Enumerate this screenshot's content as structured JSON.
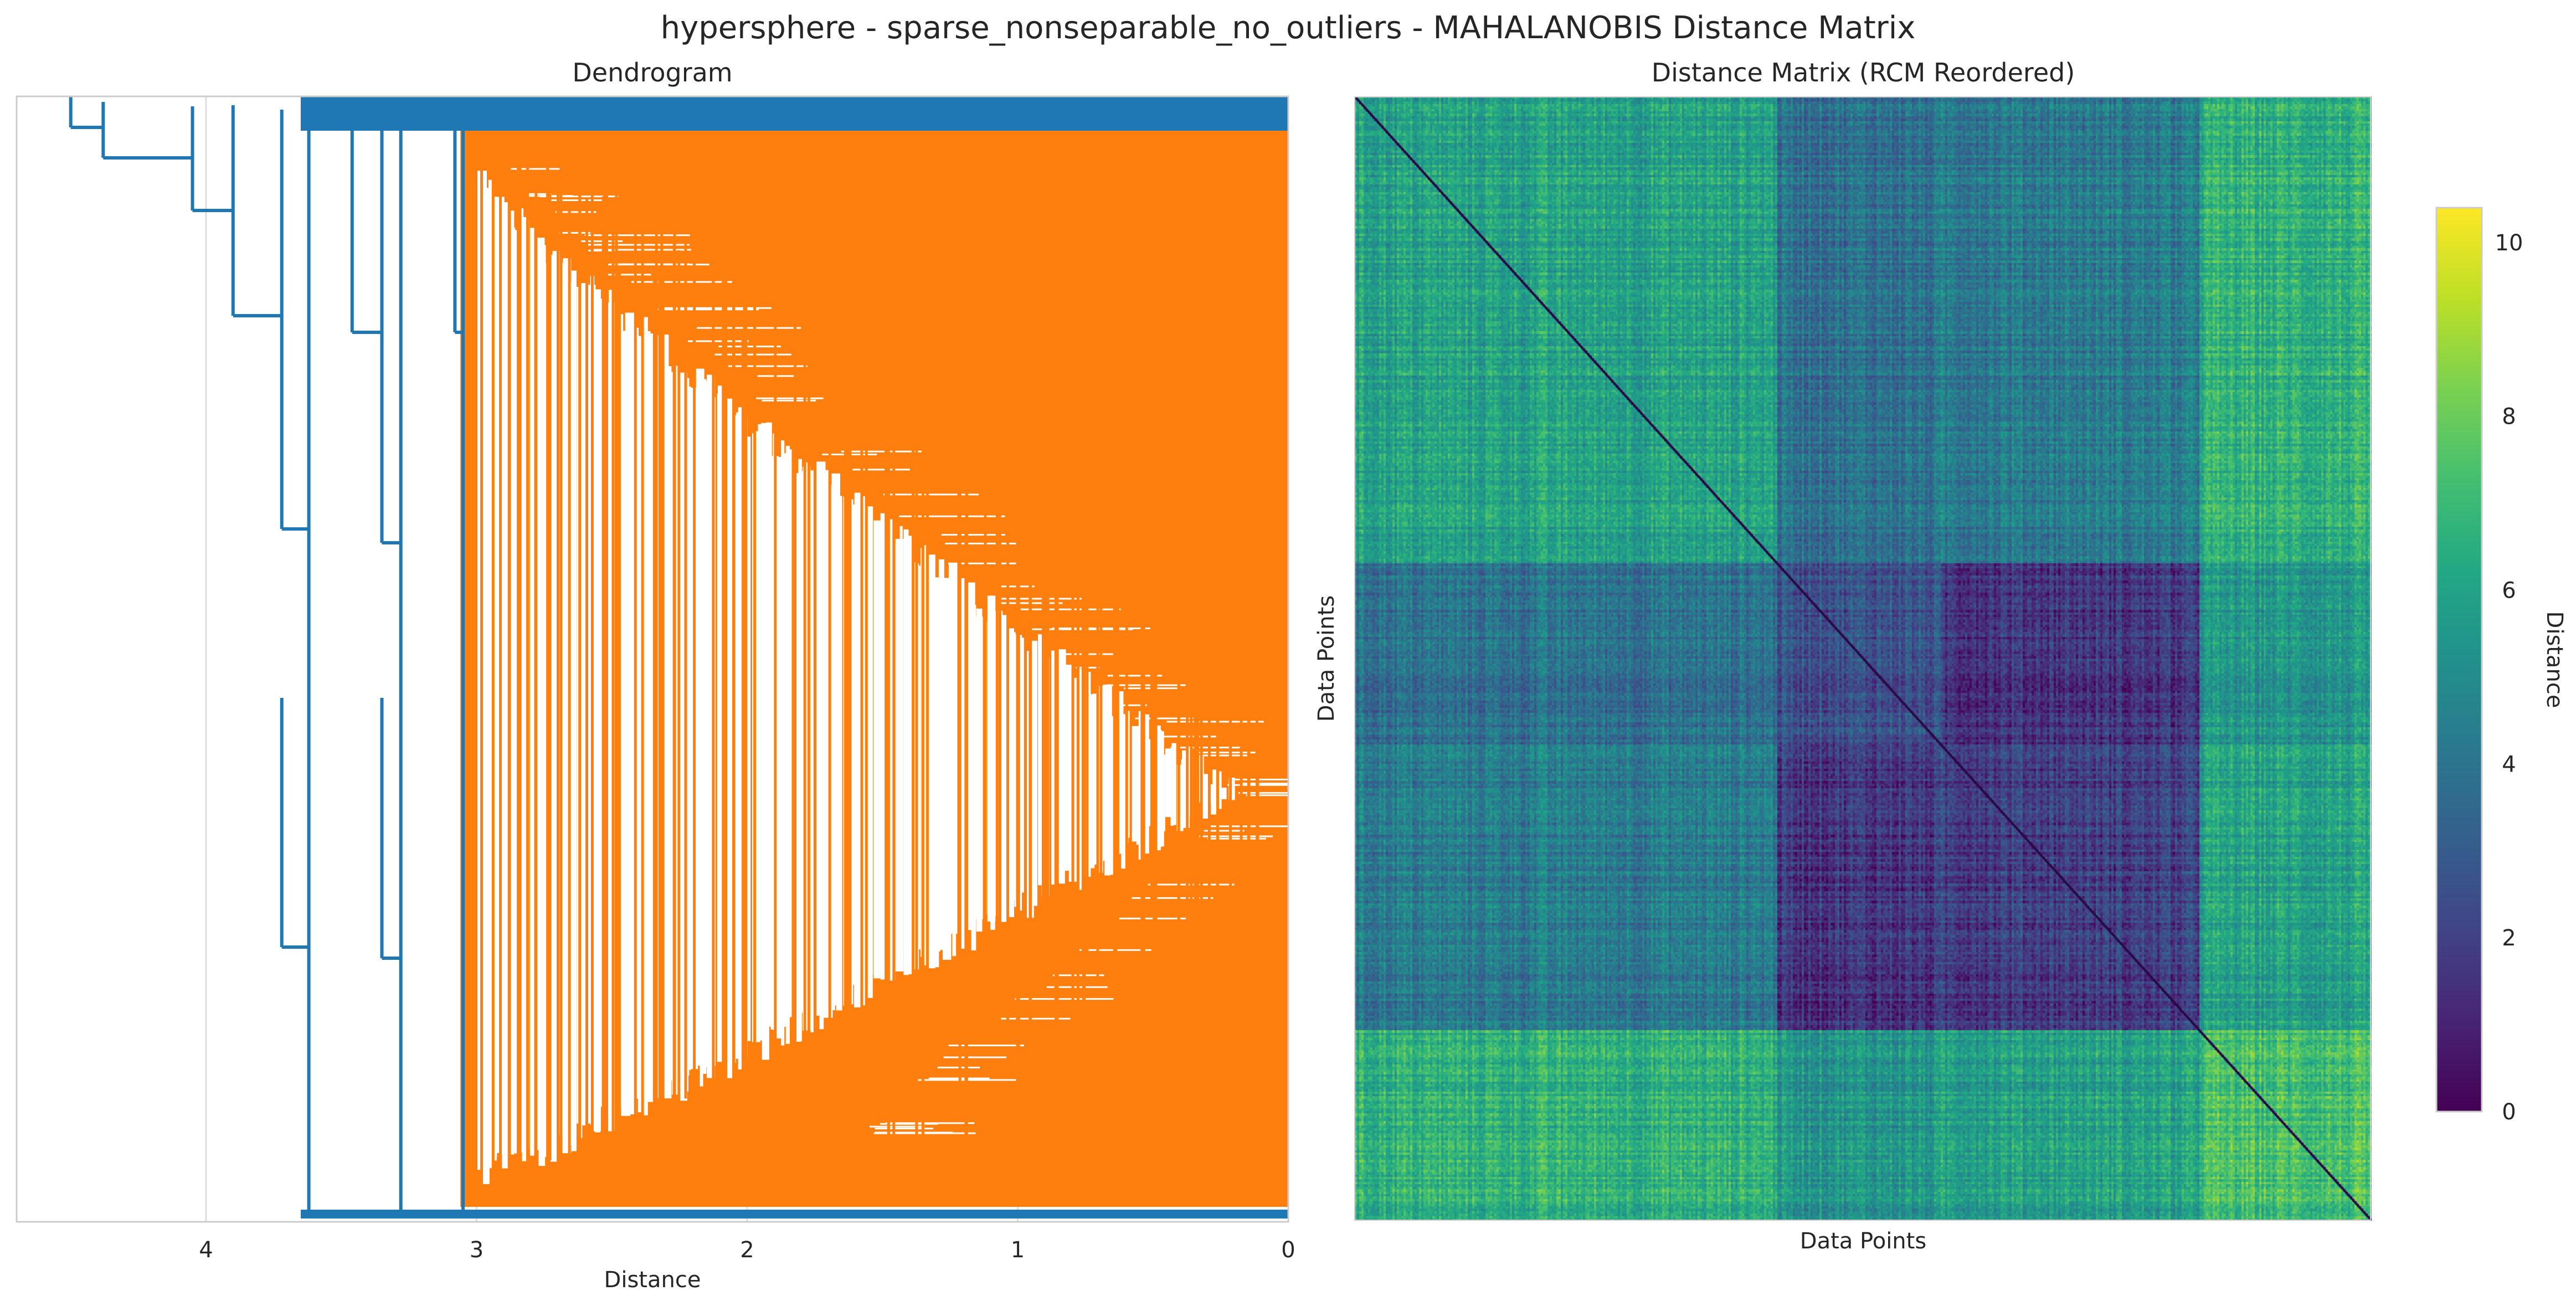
{
  "figure": {
    "title": "hypersphere - sparse_nonseparable_no_outliers - MAHALANOBIS Distance Matrix"
  },
  "chart_data": [
    {
      "type": "dendrogram",
      "title": "Dendrogram",
      "xlabel": "Distance",
      "ylabel": "",
      "orientation": "left",
      "xlim": [
        4.7,
        0
      ],
      "xticks": [
        4,
        3,
        2,
        1,
        0
      ],
      "grid": true,
      "colors": {
        "above_threshold": "#1f77b4",
        "cluster": "#ff7f0e"
      },
      "merges_above_threshold": [
        4.5,
        4.38,
        4.05,
        3.9,
        3.72,
        3.62,
        3.35,
        3.28,
        3.08,
        3.05
      ]
    },
    {
      "type": "heatmap",
      "title": "Distance Matrix (RCM Reordered)",
      "xlabel": "Data Points",
      "ylabel": "Data Points",
      "colormap": "viridis",
      "colorbar": {
        "label": "Distance",
        "min": 0,
        "max": 10.4,
        "ticks": [
          0,
          2,
          4,
          6,
          8,
          10
        ]
      },
      "block_boundaries": [
        0.415,
        0.575,
        0.83
      ],
      "block_means": [
        [
          6.0,
          3.9,
          4.3,
          6.6
        ],
        [
          3.9,
          2.6,
          1.6,
          5.4
        ],
        [
          4.3,
          1.6,
          1.9,
          5.9
        ],
        [
          6.6,
          5.4,
          5.9,
          7.2
        ]
      ]
    }
  ]
}
